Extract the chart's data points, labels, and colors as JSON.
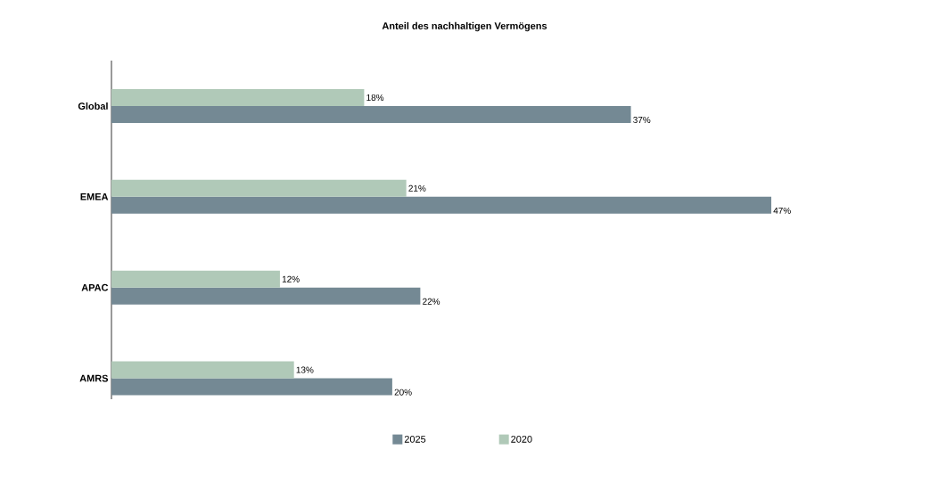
{
  "chart_data": {
    "type": "bar",
    "orientation": "horizontal",
    "title": "Anteil des nachhaltigen Vermögens",
    "categories": [
      "Global",
      "EMEA",
      "APAC",
      "AMRS"
    ],
    "series": [
      {
        "name": "2025",
        "color": "#748994",
        "values": [
          37,
          47,
          22,
          20
        ],
        "value_labels": [
          "37%",
          "47%",
          "22%",
          "20%"
        ]
      },
      {
        "name": "2020",
        "color": "#b0c9b8",
        "values": [
          18,
          21,
          12,
          13
        ],
        "value_labels": [
          "18%",
          "21%",
          "12%",
          "13%"
        ]
      }
    ],
    "tick_labels": "y",
    "legend": "bottom"
  }
}
